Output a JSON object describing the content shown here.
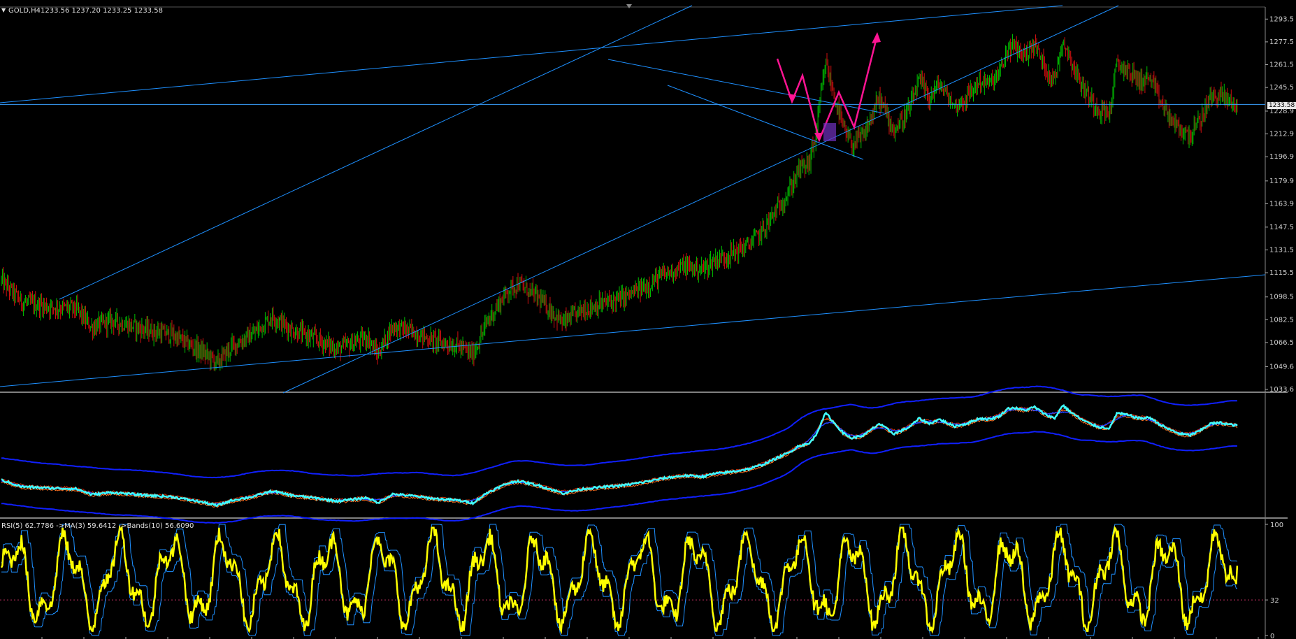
{
  "main": {
    "symbol_label": "GOLD,H4",
    "ohlc_label": "1233.56 1237.20 1233.25 1233.58",
    "current_price_label": "1233.58",
    "price_ticks": [
      "1293.5",
      "1277.5",
      "1261.5",
      "1245.5",
      "1228.9",
      "1212.9",
      "1196.9",
      "1179.9",
      "1163.9",
      "1147.5",
      "1131.5",
      "1115.5",
      "1098.5",
      "1082.5",
      "1066.5",
      "1049.6",
      "1033.6"
    ]
  },
  "rsi": {
    "label": "RSI(5) 62.7786 ->MA(3) 59.6412 ->Bands(10) 56.6090",
    "ticks": [
      "100",
      "32",
      "0"
    ]
  },
  "colors": {
    "background": "#000000",
    "bull_candle": "#00c000",
    "bear_candle": "#d01010",
    "trendline": "#1e90ff",
    "hline": "#3aa0ff",
    "projection": "#ff1493",
    "cyan_line": "#40ffff",
    "blue_band": "#1020ff",
    "rsi_line": "#ffff00",
    "rsi_band": "#1e90ff",
    "level_line": "#c03060"
  },
  "chart_data": [
    {
      "type": "candlestick",
      "title": "GOLD,H4",
      "ylim": [
        1033.6,
        1301
      ],
      "y_ticks": [
        1293.5,
        1277.5,
        1261.5,
        1245.5,
        1228.9,
        1212.9,
        1196.9,
        1179.9,
        1163.9,
        1147.5,
        1131.5,
        1115.5,
        1098.5,
        1082.5,
        1066.5,
        1049.6,
        1033.6
      ],
      "last_price": 1233.58,
      "price_path": [
        [
          0,
          1110
        ],
        [
          8,
          1104
        ],
        [
          20,
          1095
        ],
        [
          45,
          1092
        ],
        [
          75,
          1090
        ],
        [
          90,
          1077
        ],
        [
          110,
          1082
        ],
        [
          140,
          1076
        ],
        [
          170,
          1072
        ],
        [
          200,
          1060
        ],
        [
          215,
          1052
        ],
        [
          230,
          1064
        ],
        [
          250,
          1072
        ],
        [
          270,
          1085
        ],
        [
          290,
          1075
        ],
        [
          310,
          1070
        ],
        [
          335,
          1062
        ],
        [
          365,
          1070
        ],
        [
          375,
          1058
        ],
        [
          390,
          1078
        ],
        [
          410,
          1074
        ],
        [
          430,
          1068
        ],
        [
          455,
          1064
        ],
        [
          470,
          1058
        ],
        [
          485,
          1082
        ],
        [
          505,
          1103
        ],
        [
          515,
          1108
        ],
        [
          535,
          1098
        ],
        [
          560,
          1080
        ],
        [
          580,
          1090
        ],
        [
          600,
          1094
        ],
        [
          620,
          1098
        ],
        [
          640,
          1105
        ],
        [
          660,
          1114
        ],
        [
          680,
          1120
        ],
        [
          700,
          1118
        ],
        [
          710,
          1124
        ],
        [
          725,
          1128
        ],
        [
          745,
          1135
        ],
        [
          760,
          1146
        ],
        [
          775,
          1162
        ],
        [
          785,
          1172
        ],
        [
          795,
          1188
        ],
        [
          805,
          1192
        ],
        [
          812,
          1212
        ],
        [
          818,
          1245
        ],
        [
          822,
          1262
        ],
        [
          830,
          1240
        ],
        [
          840,
          1215
        ],
        [
          848,
          1205
        ],
        [
          860,
          1212
        ],
        [
          875,
          1238
        ],
        [
          890,
          1215
        ],
        [
          905,
          1230
        ],
        [
          915,
          1250
        ],
        [
          925,
          1238
        ],
        [
          935,
          1248
        ],
        [
          950,
          1232
        ],
        [
          962,
          1238
        ],
        [
          975,
          1250
        ],
        [
          985,
          1248
        ],
        [
          995,
          1255
        ],
        [
          1003,
          1272
        ],
        [
          1010,
          1274
        ],
        [
          1020,
          1268
        ],
        [
          1030,
          1276
        ],
        [
          1040,
          1260
        ],
        [
          1050,
          1250
        ],
        [
          1058,
          1280
        ],
        [
          1064,
          1268
        ],
        [
          1075,
          1250
        ],
        [
          1085,
          1238
        ],
        [
          1095,
          1230
        ],
        [
          1105,
          1228
        ],
        [
          1112,
          1262
        ],
        [
          1122,
          1258
        ],
        [
          1135,
          1250
        ],
        [
          1145,
          1252
        ],
        [
          1155,
          1236
        ],
        [
          1165,
          1224
        ],
        [
          1175,
          1215
        ],
        [
          1185,
          1212
        ],
        [
          1195,
          1222
        ],
        [
          1205,
          1238
        ],
        [
          1215,
          1240
        ],
        [
          1225,
          1236
        ],
        [
          1232,
          1233.6
        ]
      ]
    },
    {
      "type": "line",
      "title": "",
      "ylim": [
        0,
        100
      ],
      "series_colors": [
        "#40ffff",
        "#ff7020",
        "#1020ff"
      ]
    },
    {
      "type": "line",
      "title": "RSI(5) 62.7786 ->MA(3) 59.6412 ->Bands(10) 56.6090",
      "ylim": [
        0,
        100
      ],
      "y_ticks": [
        100,
        32,
        0
      ],
      "rsi_value": 62.7786,
      "ma_value": 59.6412,
      "bands_value": 56.609,
      "level": 32
    }
  ]
}
